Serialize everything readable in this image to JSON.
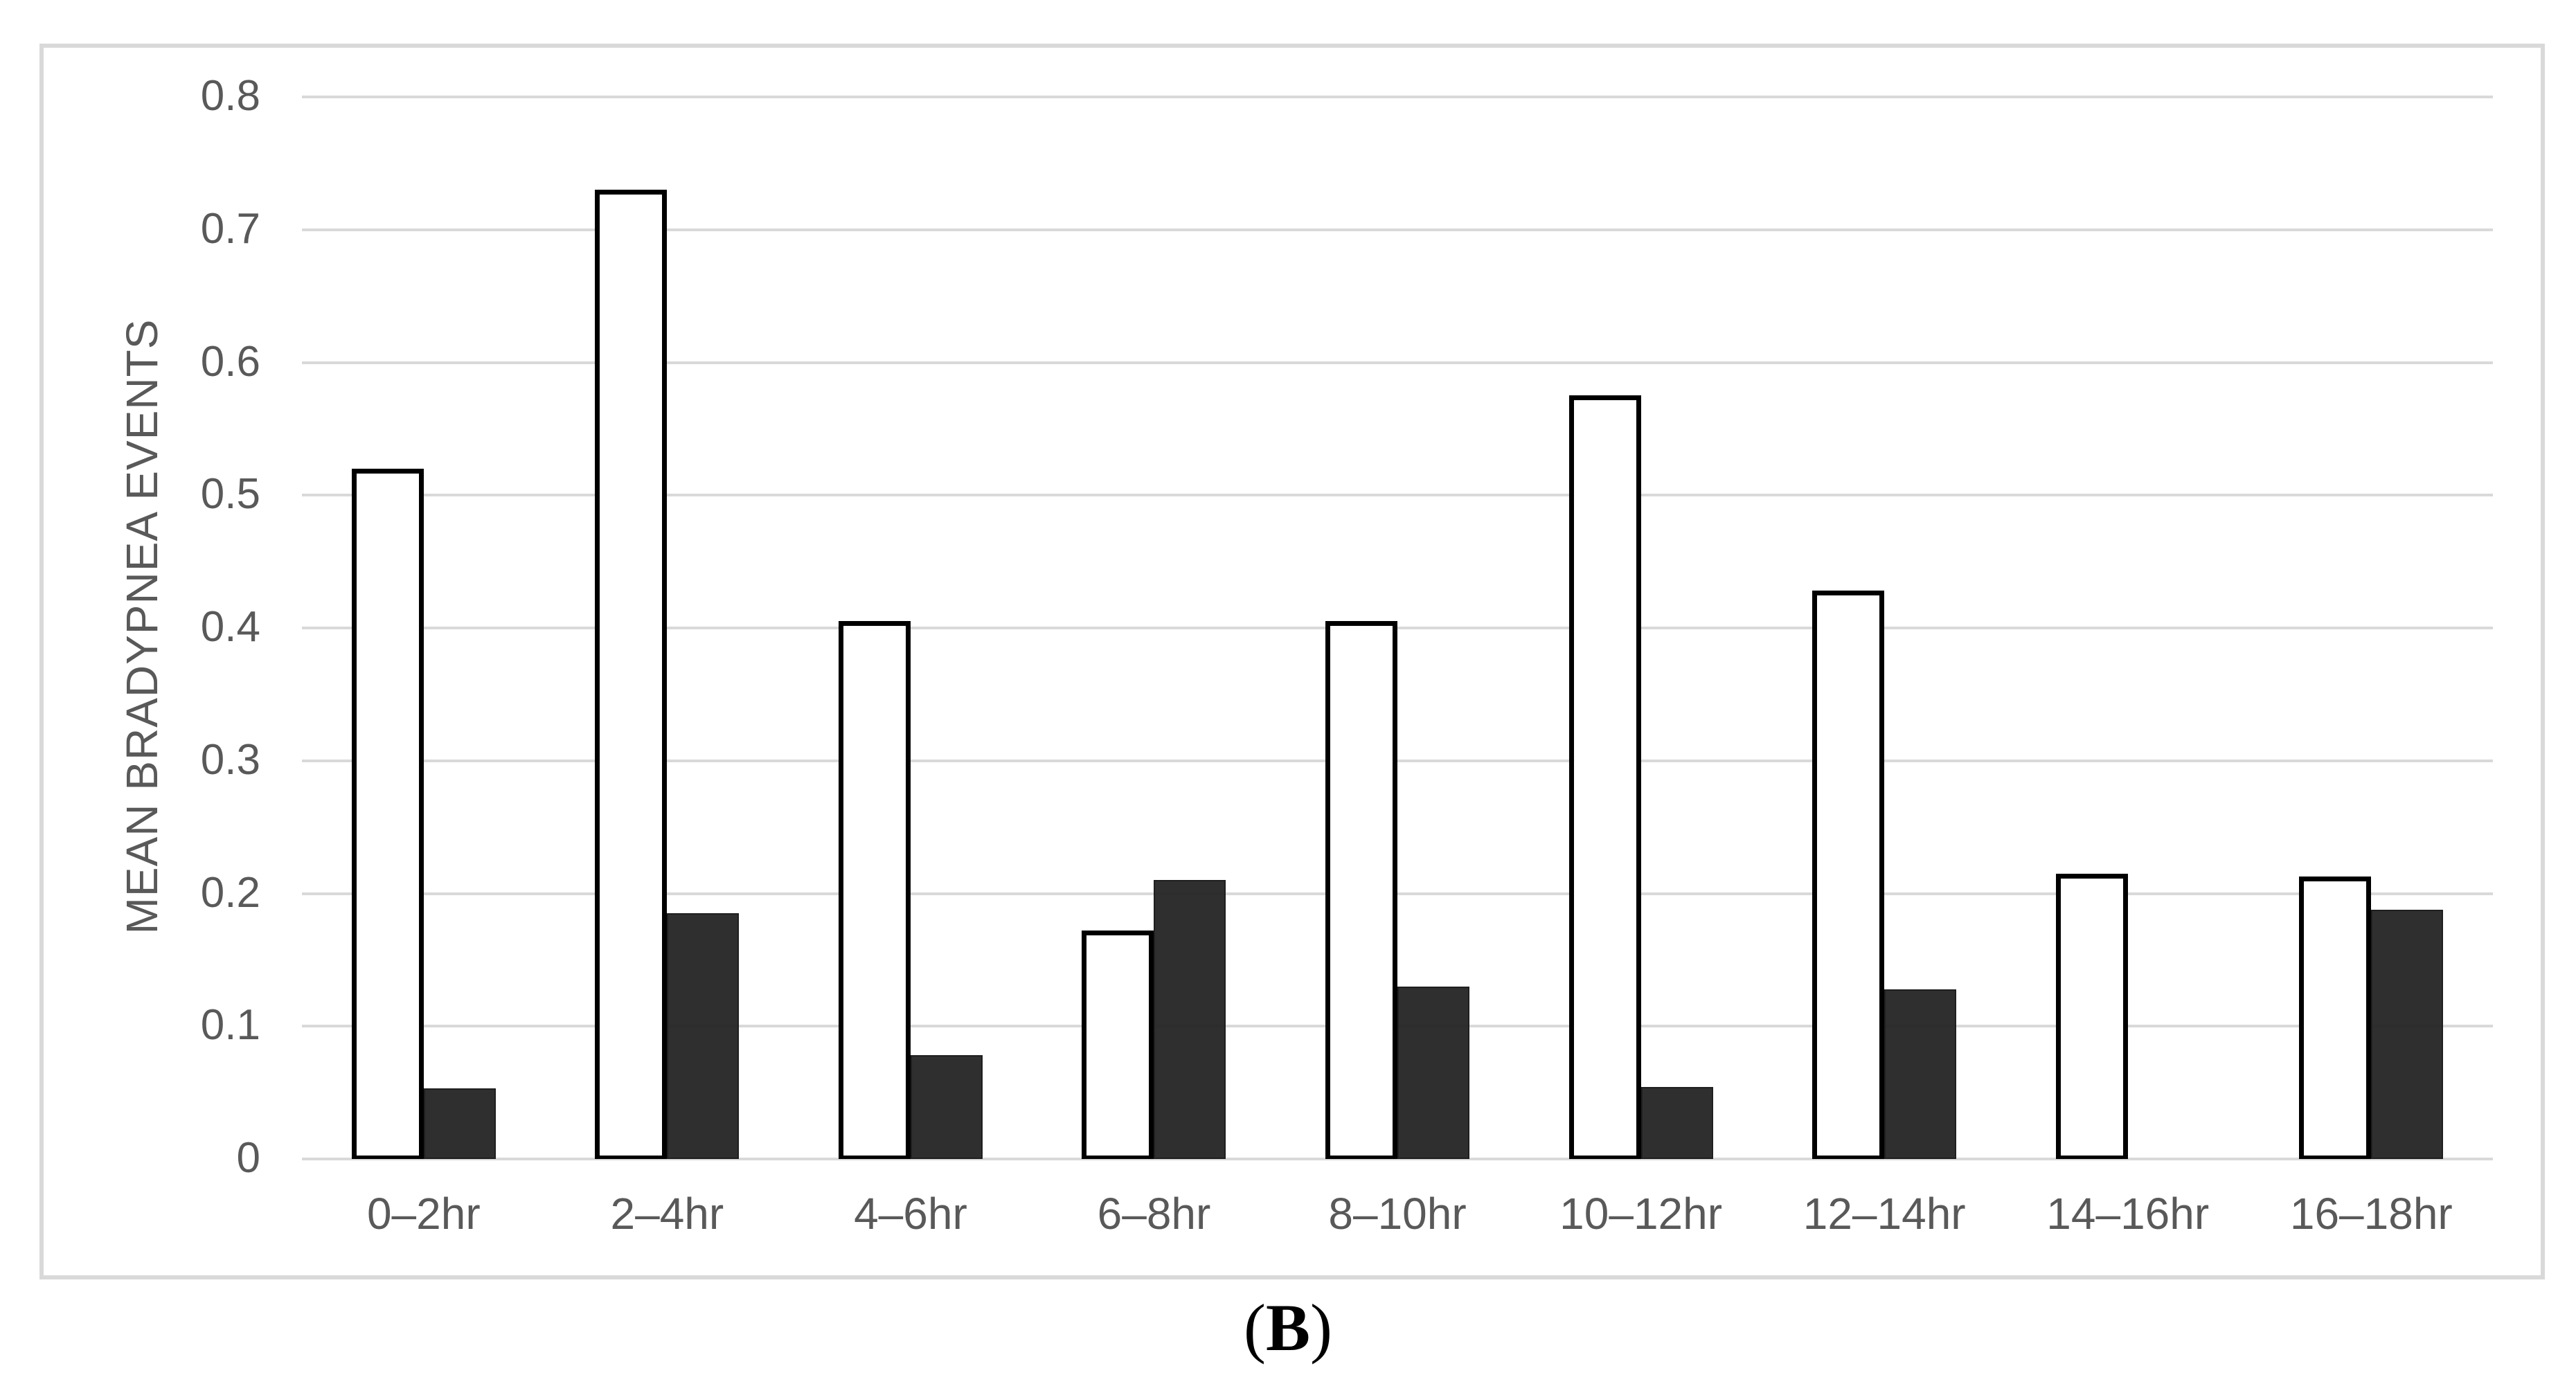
{
  "chart_data": {
    "type": "bar",
    "title": "",
    "xlabel": "",
    "ylabel": "MEAN BRADYPNEA EVENTS",
    "categories": [
      "0–2hr",
      "2–4hr",
      "4–6hr",
      "6–8hr",
      "8–10hr",
      "10–12hr",
      "12–14hr",
      "14–16hr",
      "16–18hr"
    ],
    "series": [
      {
        "name": "white-bars",
        "fill": "#ffffff",
        "stroke": "#000000",
        "values": [
          0.52,
          0.73,
          0.405,
          0.172,
          0.405,
          0.575,
          0.428,
          0.215,
          0.213
        ]
      },
      {
        "name": "black-bars",
        "fill": "#2e2e2e",
        "stroke": "#1f1f1f",
        "values": [
          0.053,
          0.185,
          0.078,
          0.21,
          0.13,
          0.054,
          0.128,
          0,
          0.188
        ]
      }
    ],
    "ylim": [
      0,
      0.8
    ],
    "yticks": [
      0,
      0.1,
      0.2,
      0.3,
      0.4,
      0.5,
      0.6,
      0.7,
      0.8
    ],
    "ytick_labels": [
      "0",
      "0.1",
      "0.2",
      "0.3",
      "0.4",
      "0.5",
      "0.6",
      "0.7",
      "0.8"
    ],
    "grid": true,
    "legend": "none"
  },
  "caption": {
    "prefix": "(",
    "letter": "B",
    "suffix": ")"
  },
  "colors": {
    "frame_border": "#d9d9d9",
    "gridline": "#d9d9d9",
    "axis_text": "#595959",
    "bar_white_fill": "#ffffff",
    "bar_white_stroke": "#000000",
    "bar_black_fill": "#2e2e2e",
    "caption_text": "#000000"
  }
}
